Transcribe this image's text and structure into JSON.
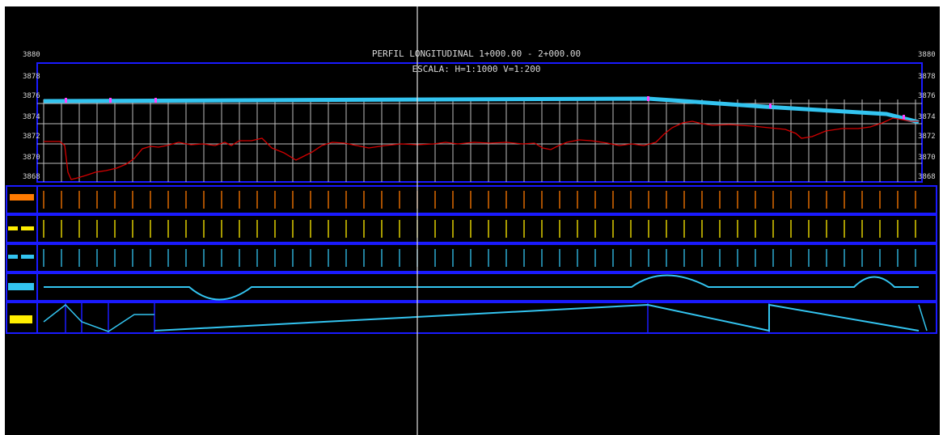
{
  "drawing": {
    "title_line1": "PERFIL LONGITUDINAL  1+000.00 - 2+000.00",
    "title_line2": "ESCALA: H=1:1000 V=1:200",
    "elevation_labels_left": [
      "3880",
      "3878",
      "3876",
      "3874",
      "3872",
      "3870",
      "3868"
    ],
    "elevation_labels_right": [
      "3880",
      "3878",
      "3876",
      "3874",
      "3872",
      "3870",
      "3868"
    ]
  },
  "profile": {
    "x_range": [
      0,
      1000
    ],
    "y_range": [
      3868,
      3880
    ],
    "grid": true,
    "ground_line_color": "#d40000",
    "grade_line_color": "#33c4f0",
    "grid_color": "#bdbdbd",
    "frame_color": "#1a1aff"
  },
  "band_colors": {
    "row1": "#ff7a00",
    "row2": "#ffee00",
    "row3": "#33c4f0",
    "row4": "#33c4f0",
    "row5": "#ffee00"
  },
  "colors": {
    "background": "#000000",
    "crosshair": "#e0e0e0",
    "vertex_marker": "#ff44ff"
  }
}
